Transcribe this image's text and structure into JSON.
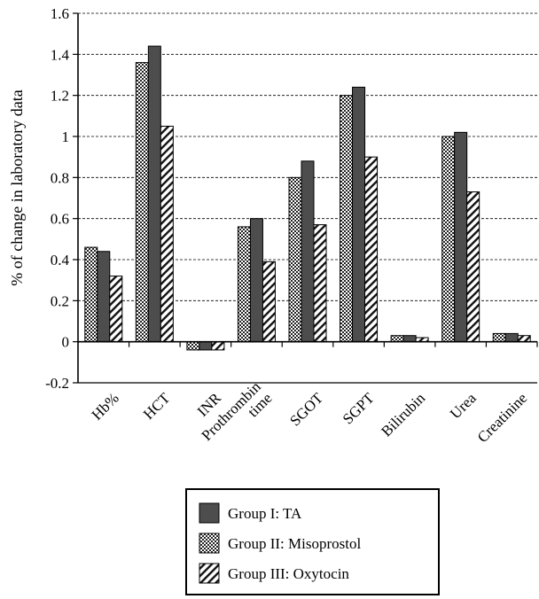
{
  "chart_data": {
    "type": "bar",
    "ylabel": "% of change in laboratory data",
    "xlabel": "",
    "title": "",
    "ylim": [
      -0.2,
      1.6
    ],
    "yticks": [
      -0.2,
      0,
      0.2,
      0.4,
      0.6,
      0.8,
      1,
      1.2,
      1.4,
      1.6
    ],
    "ytick_labels": [
      "-0.2",
      "0",
      "0.2",
      "0.4",
      "0.6",
      "0.8",
      "1",
      "1.2",
      "1.4",
      "1.6"
    ],
    "grid": "horizontal-dashed",
    "categories": [
      "Hb%",
      "HCT",
      "INR",
      "Prothrombin time",
      "SGOT",
      "SGPT",
      "Bilirubin",
      "Urea",
      "Creatinine"
    ],
    "category_lines": [
      [
        "Hb%"
      ],
      [
        "HCT"
      ],
      [
        "INR"
      ],
      [
        "Prothrombin",
        "time"
      ],
      [
        "SGOT"
      ],
      [
        "SGPT"
      ],
      [
        "Bilirubin"
      ],
      [
        "Urea"
      ],
      [
        "Creatinine"
      ]
    ],
    "series": [
      {
        "name": "Group II: Misoprostol",
        "pattern": "dotted",
        "values": [
          0.46,
          1.36,
          -0.04,
          0.56,
          0.8,
          1.2,
          0.03,
          1.0,
          0.04
        ]
      },
      {
        "name": "Group I: TA",
        "pattern": "solid-dark",
        "values": [
          0.44,
          1.44,
          -0.04,
          0.6,
          0.88,
          1.24,
          0.03,
          1.02,
          0.04
        ]
      },
      {
        "name": "Group III: Oxytocin",
        "pattern": "diagonal-hatch",
        "values": [
          0.32,
          1.05,
          -0.04,
          0.39,
          0.57,
          0.9,
          0.02,
          0.73,
          0.03
        ]
      }
    ],
    "legend": {
      "placement": "bottom-center",
      "entries": [
        {
          "label": "Group I: TA",
          "pattern": "solid-dark"
        },
        {
          "label": "Group II: Misoprostol",
          "pattern": "dotted"
        },
        {
          "label": "Group III: Oxytocin",
          "pattern": "diagonal-hatch"
        }
      ]
    },
    "colors": {
      "solid-dark": "#4d4d4d",
      "plot_background": "#ffffff"
    }
  }
}
